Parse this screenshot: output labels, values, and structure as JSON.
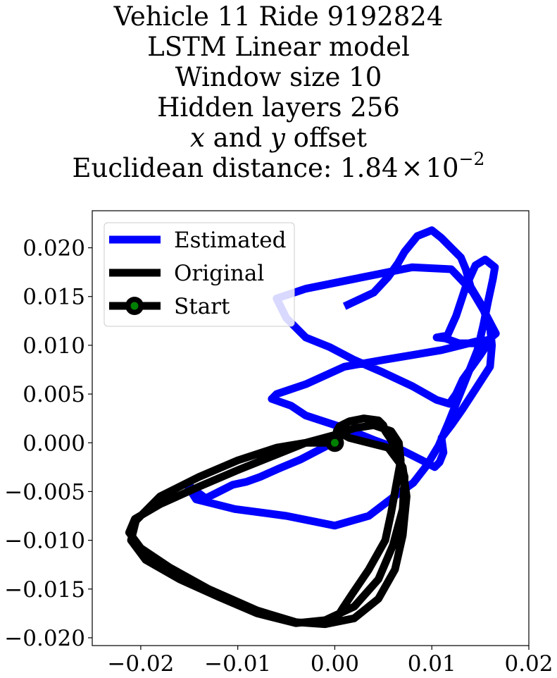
{
  "chart_data": {
    "type": "line",
    "title_lines": [
      "Vehicle 11 Ride 9192824",
      "LSTM Linear model",
      "Window size 10",
      "Hidden layers 256"
    ],
    "offset_line": {
      "var_x": "x",
      "conj": " and ",
      "var_y": "y",
      "rest": " offset"
    },
    "distance_line": {
      "prefix": "Euclidean distance: ",
      "mantissa": "1.84",
      "times": "×",
      "base": "10",
      "exponent": "−2"
    },
    "xlim": [
      -0.025,
      0.02
    ],
    "ylim": [
      -0.0208,
      0.0238
    ],
    "x_ticks": [
      {
        "value": -0.02,
        "label": "−0.02"
      },
      {
        "value": -0.01,
        "label": "−0.01"
      },
      {
        "value": 0.0,
        "label": "0.00"
      },
      {
        "value": 0.01,
        "label": "0.01"
      },
      {
        "value": 0.02,
        "label": "0.02"
      }
    ],
    "y_ticks": [
      {
        "value": 0.02,
        "label": "0.020"
      },
      {
        "value": 0.015,
        "label": "0.015"
      },
      {
        "value": 0.01,
        "label": "0.010"
      },
      {
        "value": 0.005,
        "label": "0.005"
      },
      {
        "value": 0.0,
        "label": "0.000"
      },
      {
        "value": -0.005,
        "label": "−0.005"
      },
      {
        "value": -0.01,
        "label": "−0.010"
      },
      {
        "value": -0.015,
        "label": "−0.015"
      },
      {
        "value": -0.02,
        "label": "−0.020"
      }
    ],
    "grid": false,
    "legend_position": "top-left",
    "series": [
      {
        "name": "Estimated",
        "color": "#0000ff",
        "x": [
          -0.0006,
          -0.0035,
          -0.0059,
          -0.0077,
          -0.0091,
          -0.0105,
          -0.0133,
          -0.0153,
          -0.0143,
          -0.0103,
          -0.005,
          0.0,
          0.0035,
          0.006,
          0.0081,
          0.0095,
          0.0107,
          0.0117,
          0.0127,
          0.0137,
          0.0147,
          0.0153,
          0.0158,
          0.0163,
          0.0165,
          0.0155,
          0.0145,
          0.0135,
          0.0125,
          0.0116,
          0.0105,
          0.0114,
          0.0128,
          0.014,
          0.0153,
          0.016,
          0.0166,
          0.0154,
          0.0142,
          0.012,
          0.008,
          0.002,
          -0.003,
          -0.006,
          -0.005,
          -0.003,
          -0.0005,
          0.002,
          0.005,
          0.008,
          0.0105,
          0.0118,
          0.0125,
          0.0132,
          0.015,
          0.016,
          0.015,
          0.011,
          0.005,
          0.001,
          -0.003,
          -0.006,
          -0.0065,
          -0.0045,
          -0.003,
          0.001,
          0.004,
          0.007,
          0.009,
          0.0103,
          0.0108,
          0.0112,
          0.011,
          0.012,
          0.0132,
          0.0145,
          0.016,
          0.0162,
          0.016,
          0.0152,
          0.014,
          0.0135,
          0.013,
          0.012,
          0.011,
          0.01,
          0.0085,
          0.0072,
          0.0065,
          0.0055,
          0.004,
          0.001
        ],
        "y": [
          -0.0002,
          -0.0017,
          -0.0027,
          -0.0035,
          -0.004,
          -0.0043,
          -0.0057,
          -0.0042,
          -0.0058,
          -0.0068,
          -0.0075,
          -0.0085,
          -0.0075,
          -0.0056,
          -0.0041,
          -0.0023,
          -0.0003,
          0.002,
          0.0045,
          0.007,
          0.0095,
          0.012,
          0.0145,
          0.0168,
          0.018,
          0.0188,
          0.0182,
          0.016,
          0.013,
          0.011,
          0.0108,
          0.0107,
          0.0102,
          0.0102,
          0.0102,
          0.0107,
          0.0112,
          0.0135,
          0.0155,
          0.0178,
          0.018,
          0.0168,
          0.0158,
          0.0148,
          0.0128,
          0.0108,
          0.0098,
          0.0085,
          0.0072,
          0.0058,
          0.0044,
          0.004,
          0.005,
          0.0065,
          0.009,
          0.0105,
          0.0105,
          0.0095,
          0.0085,
          0.0078,
          0.006,
          0.005,
          0.0045,
          0.0038,
          0.0028,
          0.0015,
          0.0003,
          -0.0008,
          -0.0018,
          -0.0025,
          -0.002,
          -0.001,
          0.0005,
          0.0018,
          0.0035,
          0.0055,
          0.0078,
          0.01,
          0.0118,
          0.014,
          0.016,
          0.0178,
          0.019,
          0.02,
          0.021,
          0.0218,
          0.0212,
          0.0196,
          0.0184,
          0.017,
          0.0154,
          0.014
        ]
      },
      {
        "name": "Original",
        "color": "#000000",
        "x": [
          0.0,
          -0.003,
          -0.006,
          -0.01,
          -0.014,
          -0.018,
          -0.0205,
          -0.021,
          -0.0195,
          -0.016,
          -0.012,
          -0.008,
          -0.004,
          -0.001,
          0.002,
          0.0045,
          0.006,
          0.007,
          0.0072,
          0.0065,
          0.0058,
          0.0052,
          0.005,
          0.0045,
          0.003,
          0.0015,
          0.0005,
          0.0002,
          0.0015,
          0.0035,
          0.0055,
          0.007,
          0.0074,
          0.007,
          0.0062,
          0.0045,
          0.002,
          -0.001,
          -0.004,
          -0.008,
          -0.013,
          -0.017,
          -0.02,
          -0.0212,
          -0.0206,
          -0.018,
          -0.014,
          -0.01,
          -0.006,
          -0.003,
          0.0,
          0.002,
          0.004,
          0.0058,
          0.0066,
          0.0068,
          0.0063,
          0.0058,
          0.0052,
          0.0035,
          0.0018,
          0.0008,
          0.0003
        ],
        "y": [
          0.0,
          0.0,
          -0.0005,
          -0.0018,
          -0.0035,
          -0.0055,
          -0.008,
          -0.01,
          -0.012,
          -0.014,
          -0.0158,
          -0.0175,
          -0.0185,
          -0.0182,
          -0.0168,
          -0.014,
          -0.0105,
          -0.0068,
          -0.0035,
          -0.001,
          0.0003,
          0.0012,
          0.0018,
          0.0023,
          0.0025,
          0.0022,
          0.0017,
          0.0012,
          0.0005,
          0.0,
          -0.0005,
          -0.0025,
          -0.0055,
          -0.0095,
          -0.013,
          -0.016,
          -0.018,
          -0.0186,
          -0.0184,
          -0.0172,
          -0.015,
          -0.0128,
          -0.0108,
          -0.0092,
          -0.0078,
          -0.0063,
          -0.0045,
          -0.0028,
          -0.0012,
          0.0,
          0.0008,
          0.0015,
          0.0018,
          0.0012,
          0.0,
          -0.0018,
          -0.0045,
          -0.0072,
          -0.01,
          -0.013,
          -0.0155,
          -0.017,
          -0.0178
        ]
      }
    ],
    "start_marker": {
      "name": "Start",
      "x": 0.0,
      "y": 0.0,
      "color": "#008000",
      "edge_color": "#000000"
    }
  }
}
